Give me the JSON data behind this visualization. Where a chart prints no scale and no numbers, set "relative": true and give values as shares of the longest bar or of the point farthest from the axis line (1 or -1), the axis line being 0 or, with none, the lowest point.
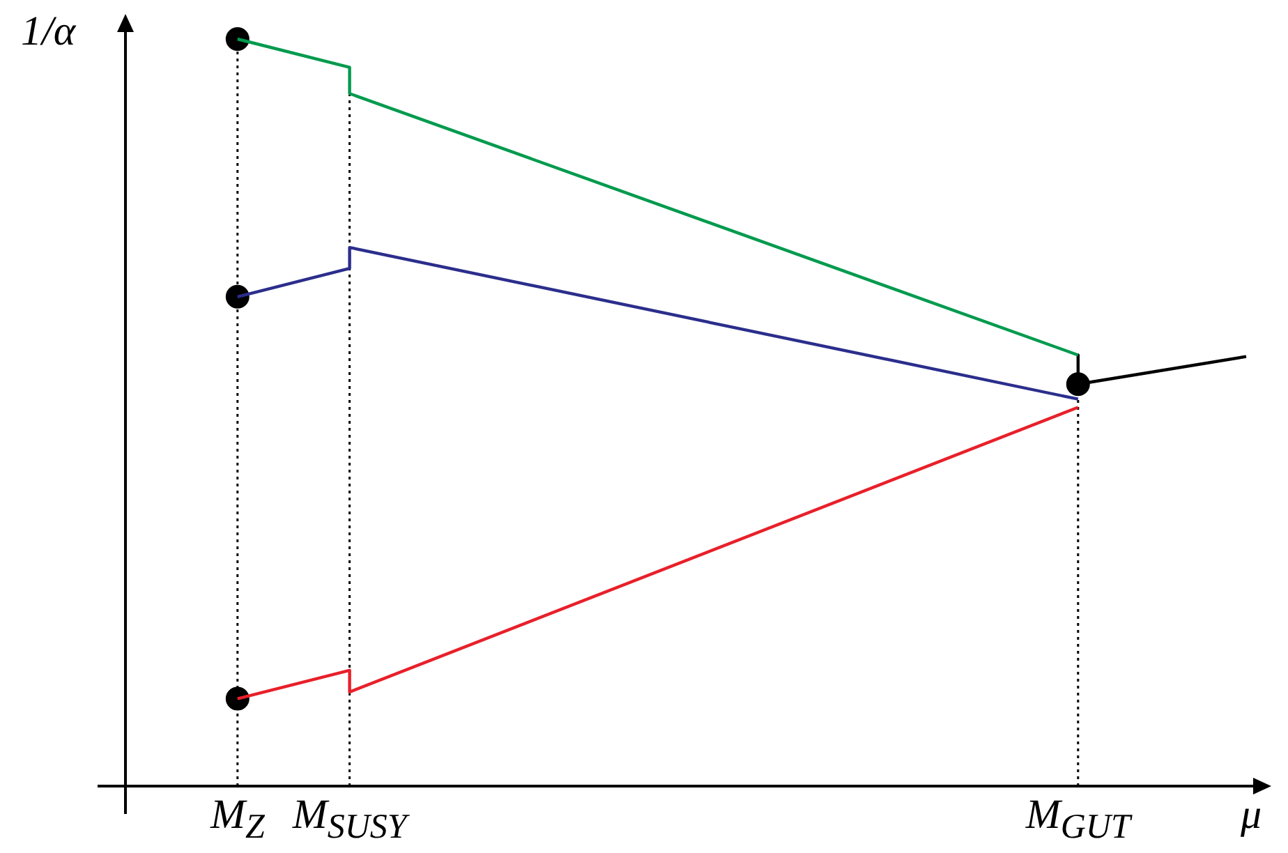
{
  "chart_data": {
    "type": "line",
    "relative": true,
    "ylabel": "1/α",
    "xlabel": "μ",
    "categories": [
      null,
      null,
      "M$_{Z}$",
      null,
      "M$_{SUSY}$",
      null,
      null,
      null,
      null,
      null,
      null,
      null,
      null,
      null,
      null,
      null,
      null,
      "M$_{GUT}$",
      null,
      null,
      null
    ],
    "legend": false,
    "tick_labels": "x",
    "series": [
      {
        "type": "line",
        "color": "#009a4e",
        "x": [
          "M$_{Z}$",
          "M$_{SUSY}$",
          "M$_{SUSY}$",
          "M$_{GUT}$"
        ],
        "values": [
          1.0,
          0.962,
          0.927,
          0.577
        ]
      },
      {
        "type": "line",
        "color": "#2b2e8c",
        "x": [
          "M$_{Z}$",
          "M$_{SUSY}$",
          "M$_{SUSY}$",
          "M$_{GUT}$"
        ],
        "values": [
          0.655,
          0.693,
          0.721,
          0.518
        ]
      },
      {
        "type": "line",
        "color": "#e8202a",
        "x": [
          "M$_{Z}$",
          "M$_{SUSY}$",
          "M$_{SUSY}$",
          "M$_{GUT}$"
        ],
        "values": [
          0.117,
          0.155,
          0.126,
          0.507
        ]
      },
      {
        "type": "line",
        "color": "#000000",
        "x": [
          "M$_{GUT}$",
          "M$_{GUT}$"
        ],
        "values": [
          0.577,
          0.538
        ]
      },
      {
        "type": "line",
        "color": "#000000",
        "values": [
          null,
          null,
          null,
          null,
          null,
          null,
          null,
          null,
          null,
          null,
          null,
          null,
          null,
          null,
          null,
          null,
          null,
          0.538,
          null,
          null,
          0.575
        ]
      },
      {
        "type": "scatter",
        "color": "#000000",
        "marker": "circle",
        "x": [
          "M$_{Z}$",
          "M$_{Z}$",
          "M$_{Z}$",
          "M$_{GUT}$"
        ],
        "values": [
          1.0,
          0.655,
          0.117,
          0.538
        ]
      }
    ],
    "ref_lines": [
      {
        "axis": "x",
        "value": "M$_{Z}$",
        "color": "#000000",
        "line_style": "dotted"
      },
      {
        "axis": "x",
        "value": "M$_{SUSY}$",
        "color": "#000000",
        "line_style": "dotted"
      },
      {
        "axis": "x",
        "value": "M$_{GUT}$",
        "color": "#000000",
        "line_style": "dotted"
      }
    ]
  }
}
